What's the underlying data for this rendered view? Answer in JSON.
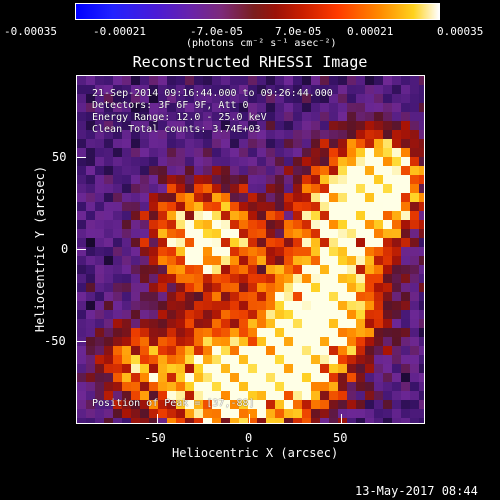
{
  "colorbar": {
    "tick_labels": [
      "-0.00035",
      "-0.00021",
      "-7.0e-05",
      "7.0e-05",
      "0.00021",
      "0.00035"
    ],
    "unit_label": "(photons cm⁻² s⁻¹ asec⁻²)"
  },
  "title": "Reconstructed RHESSI Image",
  "overlay": {
    "time_range": "21-Sep-2014 09:16:44.000 to 09:26:44.000",
    "detectors": "Detectors: 3F 6F 9F, Att 0",
    "energy_range": "Energy Range: 12.0 - 25.0 keV",
    "clean": "Clean    Total counts: 3.74E+03",
    "peak": "Position of Peak = [37,-88]"
  },
  "axes": {
    "x_label": "Heliocentric X (arcsec)",
    "y_label": "Heliocentric Y (arcsec)",
    "x_ticks": [
      "-50",
      "0",
      "50"
    ],
    "y_ticks": [
      "50",
      "0",
      "-50"
    ]
  },
  "footer": {
    "timestamp": "13-May-2017 08:44"
  },
  "colors": {
    "background": "#000000",
    "frame": "#ffffff"
  }
}
